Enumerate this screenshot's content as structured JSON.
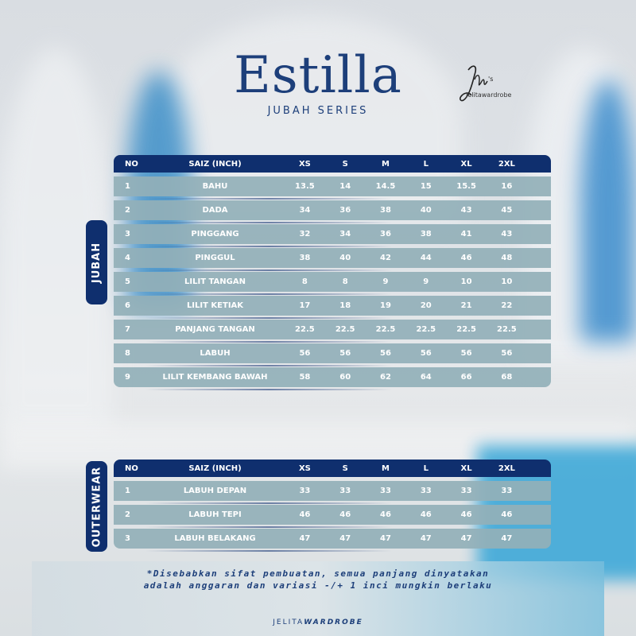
{
  "header": {
    "title": "Estilla",
    "subtitle": "JUBAH SERIES",
    "logo_text": "Jelitawardrobe"
  },
  "jubah": {
    "side_label": "JUBAH",
    "columns": [
      "NO",
      "SAIZ (INCH)",
      "XS",
      "S",
      "M",
      "L",
      "XL",
      "2XL"
    ],
    "rows": [
      {
        "no": "1",
        "name": "BAHU",
        "values": [
          "13.5",
          "14",
          "14.5",
          "15",
          "15.5",
          "16"
        ]
      },
      {
        "no": "2",
        "name": "DADA",
        "values": [
          "34",
          "36",
          "38",
          "40",
          "43",
          "45"
        ]
      },
      {
        "no": "3",
        "name": "PINGGANG",
        "values": [
          "32",
          "34",
          "36",
          "38",
          "41",
          "43"
        ]
      },
      {
        "no": "4",
        "name": "PINGGUL",
        "values": [
          "38",
          "40",
          "42",
          "44",
          "46",
          "48"
        ]
      },
      {
        "no": "5",
        "name": "LILIT TANGAN",
        "values": [
          "8",
          "8",
          "9",
          "9",
          "10",
          "10"
        ]
      },
      {
        "no": "6",
        "name": "LILIT KETIAK",
        "values": [
          "17",
          "18",
          "19",
          "20",
          "21",
          "22"
        ]
      },
      {
        "no": "7",
        "name": "PANJANG TANGAN",
        "values": [
          "22.5",
          "22.5",
          "22.5",
          "22.5",
          "22.5",
          "22.5"
        ]
      },
      {
        "no": "8",
        "name": "LABUH",
        "values": [
          "56",
          "56",
          "56",
          "56",
          "56",
          "56"
        ]
      },
      {
        "no": "9",
        "name": "LILIT KEMBANG BAWAH",
        "values": [
          "58",
          "60",
          "62",
          "64",
          "66",
          "68"
        ]
      }
    ]
  },
  "outerwear": {
    "side_label": "OUTERWEAR",
    "columns": [
      "NO",
      "SAIZ (INCH)",
      "XS",
      "S",
      "M",
      "L",
      "XL",
      "2XL"
    ],
    "rows": [
      {
        "no": "1",
        "name": "LABUH DEPAN",
        "values": [
          "33",
          "33",
          "33",
          "33",
          "33",
          "33"
        ]
      },
      {
        "no": "2",
        "name": "LABUH TEPI",
        "values": [
          "46",
          "46",
          "46",
          "46",
          "46",
          "46"
        ]
      },
      {
        "no": "3",
        "name": "LABUH BELAKANG",
        "values": [
          "47",
          "47",
          "47",
          "47",
          "47",
          "47"
        ]
      }
    ]
  },
  "footer": {
    "note_line1": "*Disebabkan sifat pembuatan, semua panjang dinyatakan",
    "note_line2": "adalah anggaran dan variasi -/+ 1 inci mungkin berlaku",
    "brand_plain": "JELITA",
    "brand_bold": "WARDROBE"
  },
  "colors": {
    "navy": "#0f2f6e",
    "row": "#93b0b9",
    "title": "#1d3f7a"
  }
}
